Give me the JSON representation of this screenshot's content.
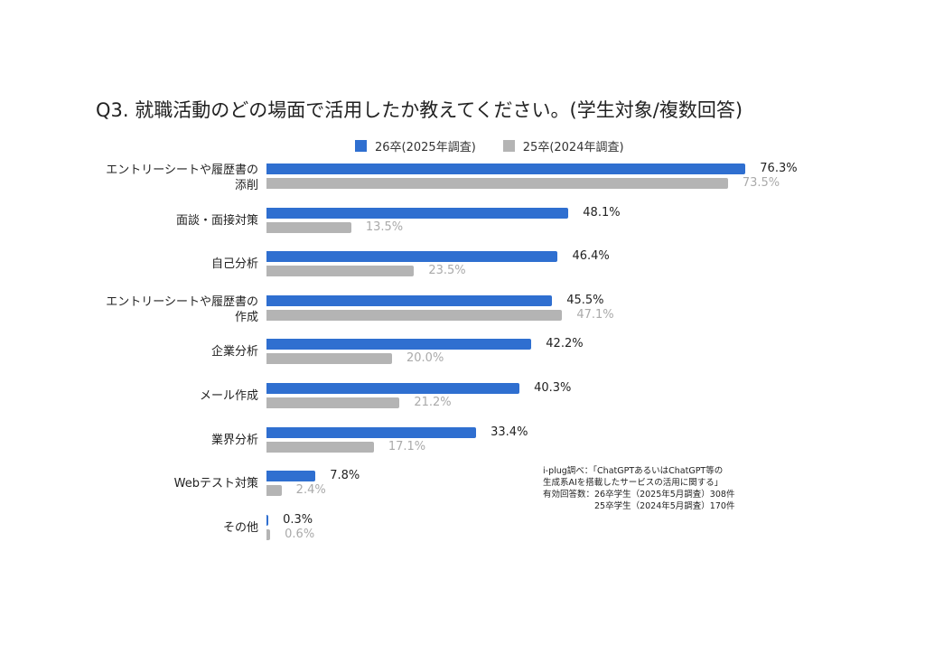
{
  "chart_data": {
    "type": "bar",
    "orientation": "horizontal",
    "title": "Q3. 就職活動のどの場面で活用したか教えてください。(学生対象/複数回答)",
    "xlabel": "",
    "ylabel": "",
    "grid": false,
    "legend_position": "top",
    "unit": "%",
    "categories": [
      "エントリーシートや履歴書の添削",
      "面談・面接対策",
      "自己分析",
      "エントリーシートや履歴書の作成",
      "企業分析",
      "メール作成",
      "業界分析",
      "Webテスト対策",
      "その他"
    ],
    "series": [
      {
        "name": "26卒(2025年調査)",
        "color": "#2f6fd0",
        "values": [
          76.3,
          48.1,
          46.4,
          45.5,
          42.2,
          40.3,
          33.4,
          7.8,
          0.3
        ]
      },
      {
        "name": "25卒(2024年調査)",
        "color": "#b4b4b4",
        "values": [
          73.5,
          13.5,
          23.5,
          47.1,
          20.0,
          21.2,
          17.1,
          2.4,
          0.6
        ]
      }
    ]
  },
  "title": "Q3. 就職活動のどの場面で活用したか教えてください。(学生対象/複数回答)",
  "legend": [
    {
      "label": "26卒(2025年調査)",
      "color": "#2f6fd0"
    },
    {
      "label": "25卒(2024年調査)",
      "color": "#b4b4b4"
    }
  ],
  "rows": [
    {
      "label_lines": [
        "エントリーシートや履歴書の",
        "添削"
      ],
      "cur": "76.3%",
      "prev": "73.5%",
      "cur_v": 76.3,
      "prev_v": 73.5
    },
    {
      "label_lines": [
        "面談・面接対策"
      ],
      "cur": "48.1%",
      "prev": "13.5%",
      "cur_v": 48.1,
      "prev_v": 13.5
    },
    {
      "label_lines": [
        "自己分析"
      ],
      "cur": "46.4%",
      "prev": "23.5%",
      "cur_v": 46.4,
      "prev_v": 23.5
    },
    {
      "label_lines": [
        "エントリーシートや履歴書の",
        "作成"
      ],
      "cur": "45.5%",
      "prev": "47.1%",
      "cur_v": 45.5,
      "prev_v": 47.1
    },
    {
      "label_lines": [
        "企業分析"
      ],
      "cur": "42.2%",
      "prev": "20.0%",
      "cur_v": 42.2,
      "prev_v": 20.0
    },
    {
      "label_lines": [
        "メール作成"
      ],
      "cur": "40.3%",
      "prev": "21.2%",
      "cur_v": 40.3,
      "prev_v": 21.2
    },
    {
      "label_lines": [
        "業界分析"
      ],
      "cur": "33.4%",
      "prev": "17.1%",
      "cur_v": 33.4,
      "prev_v": 17.1
    },
    {
      "label_lines": [
        "Webテスト対策"
      ],
      "cur": "7.8%",
      "prev": "2.4%",
      "cur_v": 7.8,
      "prev_v": 2.4
    },
    {
      "label_lines": [
        "その他"
      ],
      "cur": "0.3%",
      "prev": "0.6%",
      "cur_v": 0.3,
      "prev_v": 0.6
    }
  ],
  "note": {
    "line1": "i-plug調べ：「ChatGPTあるいはChatGPT等の",
    "line2": "生成系AIを搭載したサービスの活用に関する」",
    "line3": "有効回答数：26卒学生（2025年5月調査）308件",
    "line4": "　　　　　　25卒学生（2024年5月調査）170件"
  }
}
